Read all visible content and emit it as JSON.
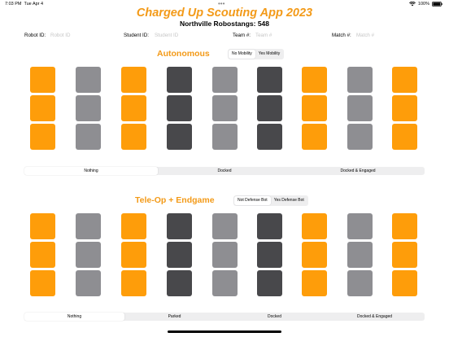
{
  "status_bar": {
    "time": "7:03 PM",
    "date": "Tue Apr 4",
    "battery": "100%"
  },
  "app": {
    "title": "Charged Up Scouting App 2023",
    "subtitle": "Northville Robostangs: 548"
  },
  "fields": [
    {
      "label": "Robot ID:",
      "placeholder": "Robot ID"
    },
    {
      "label": "Student ID:",
      "placeholder": "Student ID"
    },
    {
      "label": "Team #:",
      "placeholder": "Team #"
    },
    {
      "label": "Match #:",
      "placeholder": "Match #"
    }
  ],
  "autonomous": {
    "title": "Autonomous",
    "mobility_toggle": [
      "No Mobility",
      "Yes Mobility"
    ],
    "mobility_selected": "No Mobility",
    "grid_columns": [
      "orange",
      "gray",
      "orange",
      "dark",
      "gray",
      "dark",
      "orange",
      "gray",
      "orange"
    ],
    "grid_rows": 3,
    "charge_options": [
      "Nothing",
      "Docked",
      "Docked & Engaged"
    ],
    "charge_selected": "Nothing"
  },
  "teleop": {
    "title": "Tele-Op + Endgame",
    "defense_toggle": [
      "Not Defense Bot",
      "Yes Defense Bot"
    ],
    "defense_selected": "Not Defense Bot",
    "grid_columns": [
      "orange",
      "gray",
      "orange",
      "dark",
      "gray",
      "dark",
      "orange",
      "gray",
      "orange"
    ],
    "grid_rows": 3,
    "endgame_options": [
      "Nothing",
      "Parked",
      "Docked",
      "Docked & Engaged"
    ],
    "endgame_selected": "Nothing"
  },
  "colors": {
    "accent": "#f39a18",
    "cone": "#fe9d0a",
    "cube": "#8e8e92",
    "hybrid": "#48484b"
  },
  "icons": [
    "wifi-icon",
    "battery-icon"
  ]
}
